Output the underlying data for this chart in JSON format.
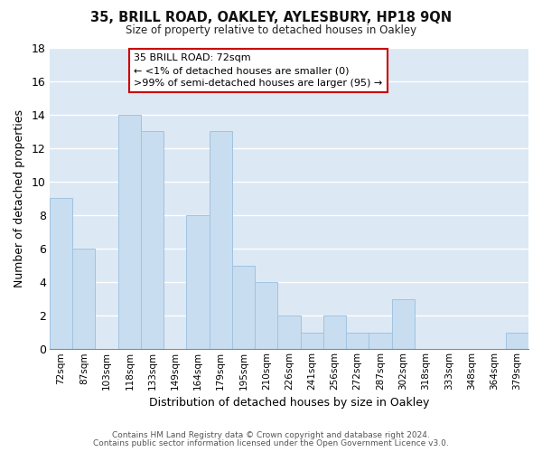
{
  "title": "35, BRILL ROAD, OAKLEY, AYLESBURY, HP18 9QN",
  "subtitle": "Size of property relative to detached houses in Oakley",
  "xlabel": "Distribution of detached houses by size in Oakley",
  "ylabel": "Number of detached properties",
  "bar_color": "#c8ddf0",
  "bar_edge_color": "#a0c4e0",
  "grid_color": "#ffffff",
  "bg_color": "#dce8f4",
  "fig_color": "#ffffff",
  "annotation_box_color": "#cc0000",
  "annotation_title": "35 BRILL ROAD: 72sqm",
  "annotation_line2": "← <1% of detached houses are smaller (0)",
  "annotation_line3": ">99% of semi-detached houses are larger (95) →",
  "categories": [
    "72sqm",
    "87sqm",
    "103sqm",
    "118sqm",
    "133sqm",
    "149sqm",
    "164sqm",
    "179sqm",
    "195sqm",
    "210sqm",
    "226sqm",
    "241sqm",
    "256sqm",
    "272sqm",
    "287sqm",
    "302sqm",
    "318sqm",
    "333sqm",
    "348sqm",
    "364sqm",
    "379sqm"
  ],
  "values": [
    9,
    6,
    0,
    14,
    13,
    0,
    8,
    13,
    5,
    4,
    2,
    1,
    2,
    1,
    1,
    3,
    0,
    0,
    0,
    0,
    1
  ],
  "highlight_index": 0,
  "highlight_color": "#cc0000",
  "ylim": [
    0,
    18
  ],
  "yticks": [
    0,
    2,
    4,
    6,
    8,
    10,
    12,
    14,
    16,
    18
  ],
  "footnote1": "Contains HM Land Registry data © Crown copyright and database right 2024.",
  "footnote2": "Contains public sector information licensed under the Open Government Licence v3.0."
}
